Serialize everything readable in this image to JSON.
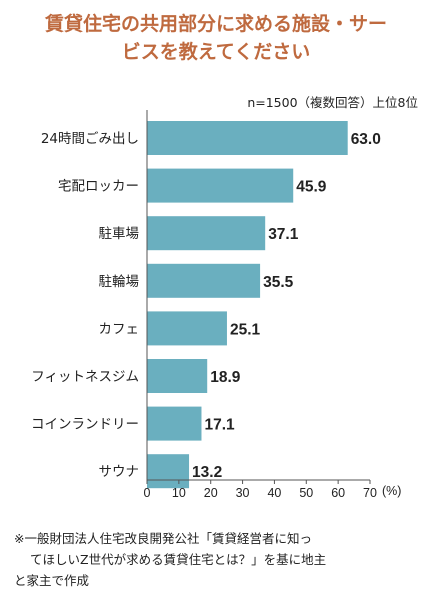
{
  "header": {
    "title_line1": "賃貸住宅の共用部分に求める施設・サー",
    "title_line2": "ビスを教えてください",
    "note": "n=1500（複数回答）上位8位"
  },
  "chart_data": {
    "type": "bar",
    "orientation": "horizontal",
    "categories": [
      "24時間ごみ出し",
      "宅配ロッカー",
      "駐車場",
      "駐輪場",
      "カフェ",
      "フィットネスジム",
      "コインランドリー",
      "サウナ"
    ],
    "values": [
      63.0,
      45.9,
      37.1,
      35.5,
      25.1,
      18.9,
      17.1,
      13.2
    ],
    "value_labels": [
      "63.0",
      "45.9",
      "37.1",
      "35.5",
      "25.1",
      "18.9",
      "17.1",
      "13.2"
    ],
    "xlim": [
      0,
      70
    ],
    "xticks": [
      "0",
      "10",
      "20",
      "30",
      "40",
      "50",
      "60",
      "70"
    ],
    "xunit": "(%)",
    "bar_color": "#6aafbf",
    "grid": false
  },
  "footnote": {
    "line1": "※一般財団法人住宅改良開発公社「賃貸経営者に知っ",
    "line2": "てほしいZ世代が求める賃貸住宅とは？」を基に地主",
    "line3": "と家主で作成"
  }
}
